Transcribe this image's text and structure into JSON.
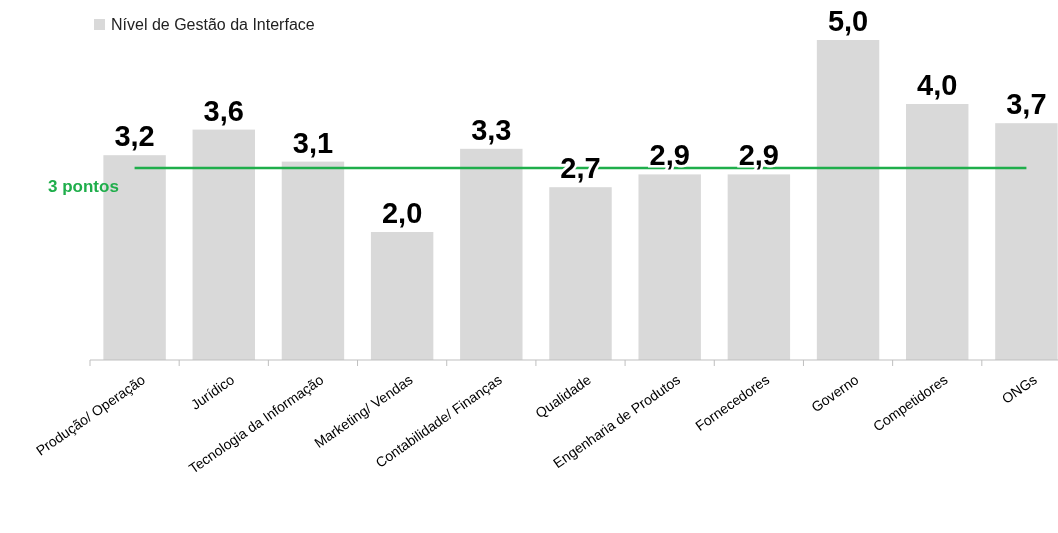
{
  "chart_data": {
    "type": "bar",
    "categories": [
      "Produção/ Operação",
      "Jurídico",
      "Tecnologia da Informação",
      "Marketing/ Vendas",
      "Contabilidade/ Finanças",
      "Qualidade",
      "Engenharia de Produtos",
      "Fornecedores",
      "Governo",
      "Competidores",
      "ONGs"
    ],
    "series": [
      {
        "name": "Nível de Gestão da Interface",
        "color": "#d9d9d9",
        "values": [
          3.2,
          3.6,
          3.1,
          2.0,
          3.3,
          2.7,
          2.9,
          2.9,
          5.0,
          4.0,
          3.7
        ],
        "value_labels": [
          "3,2",
          "3,6",
          "3,1",
          "2,0",
          "3,3",
          "2,7",
          "2,9",
          "2,9",
          "5,0",
          "4,0",
          "3,7"
        ]
      }
    ],
    "ylim": [
      0,
      5
    ],
    "tick_labels": "x",
    "legend": "top left",
    "ref_lines": [
      {
        "axis": "y",
        "value": 3,
        "label": "3 pontos",
        "color": "#1fae4b"
      }
    ]
  }
}
